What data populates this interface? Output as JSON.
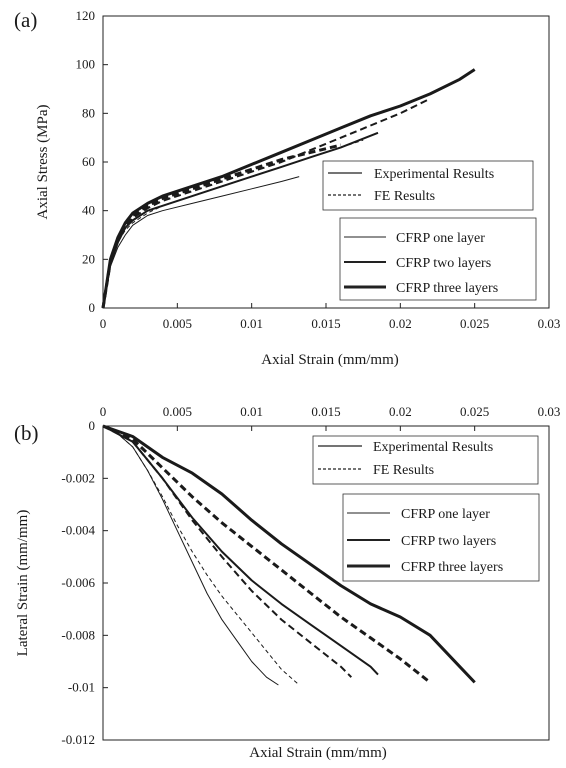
{
  "chart_data": [
    {
      "type": "line",
      "panel_label": "(a)",
      "xlabel": "Axial Strain (mm/mm)",
      "ylabel": "Axial Stress (MPa)",
      "xlim": [
        0,
        0.03
      ],
      "ylim": [
        0,
        120
      ],
      "x_ticks": [
        0,
        0.005,
        0.01,
        0.015,
        0.02,
        0.025,
        0.03
      ],
      "x_tick_labels": [
        "0",
        "0.005",
        "0.01",
        "0.015",
        "0.02",
        "0.025",
        "0.03"
      ],
      "y_ticks": [
        0,
        20,
        40,
        60,
        80,
        100,
        120
      ],
      "y_tick_labels": [
        "0",
        "20",
        "40",
        "60",
        "80",
        "100",
        "120"
      ],
      "x_axis_position": "bottom",
      "grid": false,
      "legend_style": {
        "title_entries": [
          "Experimental Results",
          "FE Results"
        ],
        "width_entries": [
          "CFRP one layer",
          "CFRP two layers",
          "CFRP three layers"
        ],
        "placement": "bottom-right"
      },
      "series": [
        {
          "layers": "CFRP one layer",
          "kind": "Experimental Results",
          "x": [
            0,
            0.0005,
            0.001,
            0.0015,
            0.002,
            0.003,
            0.004,
            0.006,
            0.008,
            0.01,
            0.012,
            0.0132
          ],
          "y": [
            0,
            17,
            25,
            30,
            34,
            38,
            40,
            43,
            46,
            49,
            52,
            54
          ]
        },
        {
          "layers": "CFRP one layer",
          "kind": "FE Results",
          "x": [
            0,
            0.0005,
            0.001,
            0.0015,
            0.002,
            0.003,
            0.004,
            0.006,
            0.008,
            0.01,
            0.012,
            0.014,
            0.016,
            0.0175
          ],
          "y": [
            0,
            18,
            27,
            32,
            35,
            39,
            42,
            46,
            50,
            54,
            58,
            62,
            66,
            69
          ]
        },
        {
          "layers": "CFRP two layers",
          "kind": "Experimental Results",
          "x": [
            0,
            0.0005,
            0.001,
            0.0015,
            0.002,
            0.003,
            0.004,
            0.006,
            0.008,
            0.01,
            0.012,
            0.014,
            0.016,
            0.0185
          ],
          "y": [
            0,
            18,
            27,
            33,
            36,
            40,
            42,
            46,
            50,
            54,
            58,
            62,
            66,
            72
          ]
        },
        {
          "layers": "CFRP two layers",
          "kind": "FE Results",
          "x": [
            0,
            0.0005,
            0.001,
            0.0015,
            0.002,
            0.003,
            0.004,
            0.006,
            0.008,
            0.01,
            0.012,
            0.014,
            0.016,
            0.018,
            0.02,
            0.022
          ],
          "y": [
            0,
            18,
            28,
            33,
            37,
            41,
            44,
            48,
            52,
            56,
            60,
            65,
            70,
            75,
            80,
            86
          ]
        },
        {
          "layers": "CFRP three layers",
          "kind": "Experimental Results",
          "x": [
            0,
            0.0005,
            0.001,
            0.0015,
            0.002,
            0.003,
            0.004,
            0.006,
            0.008,
            0.01,
            0.012,
            0.014,
            0.016,
            0.018,
            0.02,
            0.022,
            0.024,
            0.025
          ],
          "y": [
            0,
            20,
            29,
            35,
            39,
            43,
            46,
            50,
            54,
            59,
            64,
            69,
            74,
            79,
            83,
            88,
            94,
            98
          ]
        },
        {
          "layers": "CFRP three layers",
          "kind": "FE Results",
          "x": [
            0,
            0.0005,
            0.001,
            0.0015,
            0.002,
            0.003,
            0.004,
            0.006,
            0.008,
            0.01,
            0.012,
            0.014,
            0.016
          ],
          "y": [
            0,
            19,
            28,
            34,
            38,
            42,
            45,
            49,
            53,
            57,
            61,
            64,
            67
          ]
        }
      ]
    },
    {
      "type": "line",
      "panel_label": "(b)",
      "xlabel": "Axial Strain (mm/mm)",
      "ylabel": "Lateral Strain (mm/mm)",
      "xlim": [
        0,
        0.03
      ],
      "ylim": [
        -0.012,
        0
      ],
      "x_ticks": [
        0,
        0.005,
        0.01,
        0.015,
        0.02,
        0.025,
        0.03
      ],
      "x_tick_labels": [
        "0",
        "0.005",
        "0.01",
        "0.015",
        "0.02",
        "0.025",
        "0.03"
      ],
      "y_ticks": [
        0,
        -0.002,
        -0.004,
        -0.006,
        -0.008,
        -0.01,
        -0.012
      ],
      "y_tick_labels": [
        "0",
        "-0.002",
        "-0.004",
        "-0.006",
        "-0.008",
        "-0.01",
        "-0.012"
      ],
      "x_axis_position": "top",
      "grid": false,
      "legend_style": {
        "title_entries": [
          "Experimental Results",
          "FE Results"
        ],
        "width_entries": [
          "CFRP one layer",
          "CFRP two layers",
          "CFRP three layers"
        ],
        "placement": "top-right"
      },
      "series": [
        {
          "layers": "CFRP one layer",
          "kind": "Experimental Results",
          "x": [
            0,
            0.001,
            0.002,
            0.003,
            0.004,
            0.005,
            0.006,
            0.007,
            0.008,
            0.009,
            0.01,
            0.011,
            0.0118
          ],
          "y": [
            0,
            -0.0003,
            -0.0008,
            -0.0017,
            -0.0028,
            -0.004,
            -0.0052,
            -0.0064,
            -0.0074,
            -0.0082,
            -0.009,
            -0.0096,
            -0.0099
          ]
        },
        {
          "layers": "CFRP one layer",
          "kind": "FE Results",
          "x": [
            0,
            0.001,
            0.002,
            0.003,
            0.004,
            0.005,
            0.006,
            0.007,
            0.008,
            0.009,
            0.01,
            0.011,
            0.012,
            0.0132
          ],
          "y": [
            0,
            -0.0003,
            -0.0008,
            -0.0017,
            -0.0027,
            -0.0038,
            -0.0048,
            -0.0057,
            -0.0065,
            -0.0072,
            -0.0079,
            -0.0086,
            -0.0093,
            -0.0099
          ]
        },
        {
          "layers": "CFRP two layers",
          "kind": "Experimental Results",
          "x": [
            0,
            0.002,
            0.004,
            0.006,
            0.008,
            0.01,
            0.012,
            0.014,
            0.016,
            0.018,
            0.0185
          ],
          "y": [
            0,
            -0.0006,
            -0.002,
            -0.0035,
            -0.0048,
            -0.0059,
            -0.0068,
            -0.0076,
            -0.0084,
            -0.0092,
            -0.0095
          ]
        },
        {
          "layers": "CFRP two layers",
          "kind": "FE Results",
          "x": [
            0,
            0.002,
            0.004,
            0.006,
            0.008,
            0.01,
            0.012,
            0.014,
            0.016,
            0.0167
          ],
          "y": [
            0,
            -0.0006,
            -0.002,
            -0.0036,
            -0.005,
            -0.0063,
            -0.0074,
            -0.0083,
            -0.0092,
            -0.0096
          ]
        },
        {
          "layers": "CFRP three layers",
          "kind": "Experimental Results",
          "x": [
            0,
            0.002,
            0.004,
            0.006,
            0.008,
            0.01,
            0.012,
            0.014,
            0.016,
            0.018,
            0.02,
            0.022,
            0.024,
            0.025
          ],
          "y": [
            0,
            -0.0004,
            -0.0012,
            -0.0018,
            -0.0026,
            -0.0036,
            -0.0045,
            -0.0053,
            -0.0061,
            -0.0068,
            -0.0073,
            -0.008,
            -0.0092,
            -0.0098
          ]
        },
        {
          "layers": "CFRP three layers",
          "kind": "FE Results",
          "x": [
            0,
            0.002,
            0.004,
            0.006,
            0.008,
            0.01,
            0.012,
            0.014,
            0.016,
            0.018,
            0.02,
            0.022
          ],
          "y": [
            0,
            -0.0005,
            -0.0016,
            -0.0027,
            -0.0037,
            -0.0046,
            -0.0055,
            -0.0064,
            -0.0073,
            -0.0081,
            -0.0089,
            -0.0098
          ]
        }
      ]
    }
  ]
}
